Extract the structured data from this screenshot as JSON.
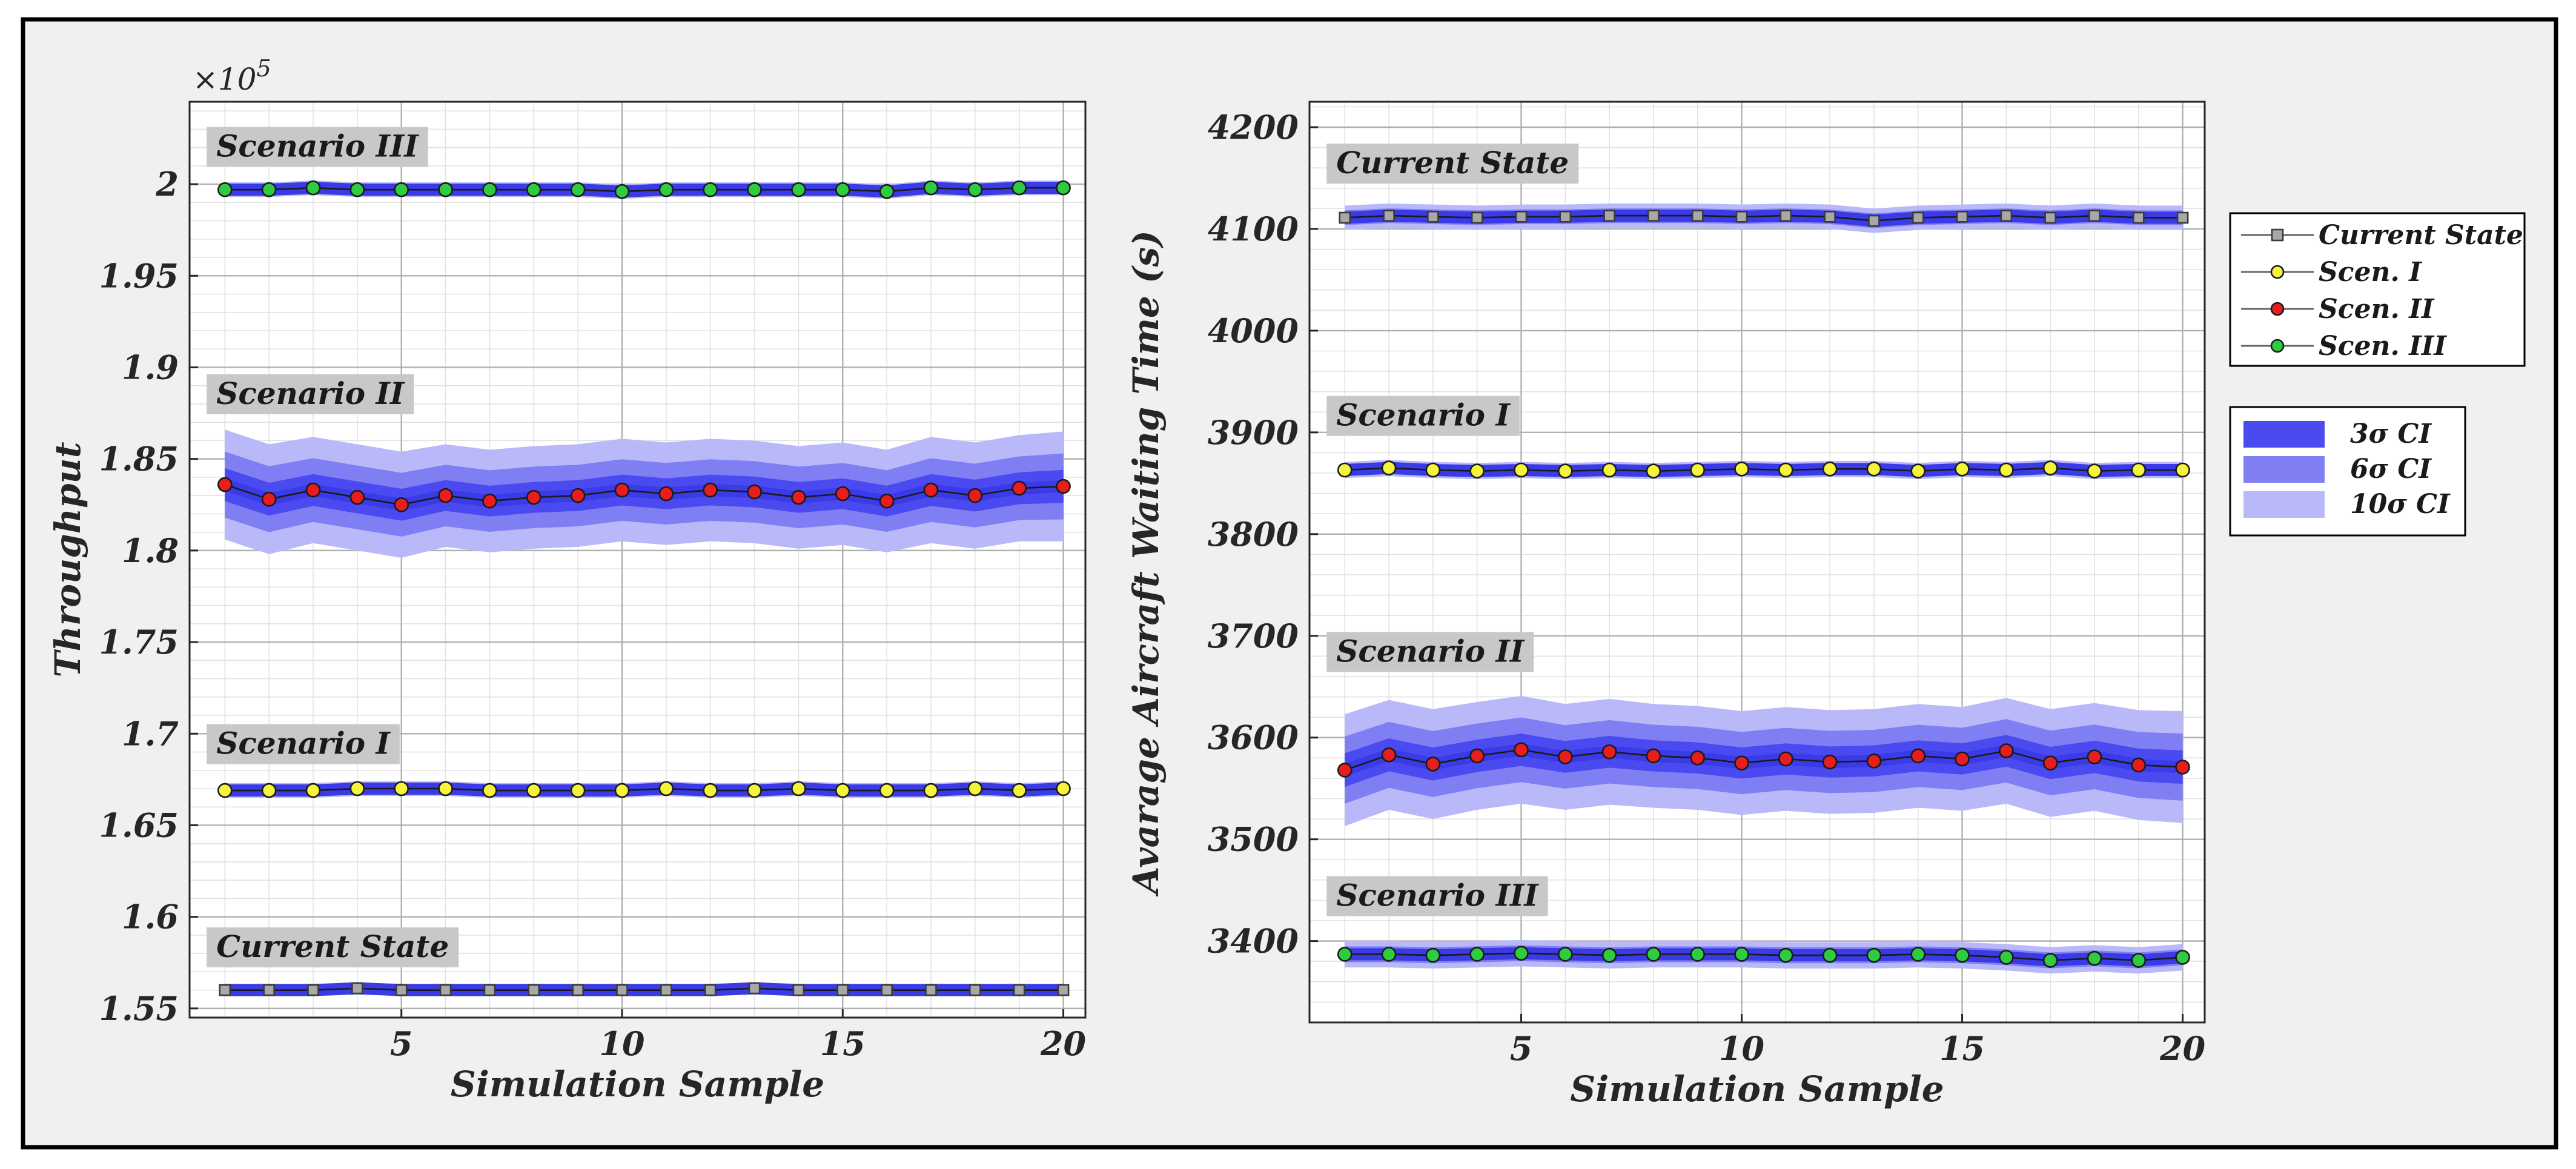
{
  "colors": {
    "band_3sigma": "#4a4af0",
    "band_6sigma": "#7f7ff3",
    "band_10sigma": "#b9b9fa",
    "current_state": "#a8a8a8",
    "scen1": "#f4f43c",
    "scen2": "#e81e1e",
    "scen3": "#2ecc40"
  },
  "chart_data": [
    {
      "type": "line",
      "xlabel": "Simulation Sample",
      "ylabel": "Throughput",
      "multiplier_label": "×10",
      "multiplier_exp": "5",
      "x": [
        1,
        2,
        3,
        4,
        5,
        6,
        7,
        8,
        9,
        10,
        11,
        12,
        13,
        14,
        15,
        16,
        17,
        18,
        19,
        20
      ],
      "xlim": [
        0.2,
        20.5
      ],
      "ylim": [
        1.545,
        2.045
      ],
      "xticks": [
        5,
        10,
        15,
        20
      ],
      "xtick_labels": [
        "5",
        "10",
        "15",
        "20"
      ],
      "yticks": [
        1.55,
        1.6,
        1.65,
        1.7,
        1.75,
        1.8,
        1.85,
        1.9,
        1.95,
        2.0
      ],
      "ytick_labels": [
        "1.55",
        "1.6",
        "1.65",
        "1.7",
        "1.75",
        "1.8",
        "1.85",
        "1.9",
        "1.95",
        "2"
      ],
      "grid": true,
      "series": [
        {
          "name": "Scenario III",
          "marker": "circle",
          "color_key": "scen3",
          "values": [
            1.997,
            1.997,
            1.998,
            1.997,
            1.997,
            1.997,
            1.997,
            1.997,
            1.997,
            1.996,
            1.997,
            1.997,
            1.997,
            1.997,
            1.997,
            1.996,
            1.998,
            1.997,
            1.998,
            1.998
          ],
          "sigma": [
            0.0004,
            0.0004,
            0.0004,
            0.0004,
            0.0004,
            0.0004,
            0.0004,
            0.0004,
            0.0004,
            0.0004,
            0.0004,
            0.0004,
            0.0004,
            0.0004,
            0.0004,
            0.0004,
            0.0004,
            0.0004,
            0.0004,
            0.0004
          ]
        },
        {
          "name": "Scenario II",
          "marker": "circle",
          "color_key": "scen2",
          "values": [
            1.836,
            1.828,
            1.833,
            1.829,
            1.825,
            1.83,
            1.827,
            1.829,
            1.83,
            1.833,
            1.831,
            1.833,
            1.832,
            1.829,
            1.831,
            1.827,
            1.833,
            1.83,
            1.834,
            1.835
          ],
          "sigma": [
            0.003,
            0.003,
            0.0029,
            0.0029,
            0.0029,
            0.0028,
            0.0028,
            0.0028,
            0.0028,
            0.0028,
            0.0028,
            0.0028,
            0.0028,
            0.0028,
            0.0028,
            0.0028,
            0.0029,
            0.0029,
            0.0029,
            0.003
          ]
        },
        {
          "name": "Scenario I",
          "marker": "circle",
          "color_key": "scen1",
          "values": [
            1.669,
            1.669,
            1.669,
            1.67,
            1.67,
            1.67,
            1.669,
            1.669,
            1.669,
            1.669,
            1.67,
            1.669,
            1.669,
            1.67,
            1.669,
            1.669,
            1.669,
            1.67,
            1.669,
            1.67
          ],
          "sigma": [
            0.0004,
            0.0004,
            0.0004,
            0.0004,
            0.0004,
            0.0004,
            0.0004,
            0.0004,
            0.0004,
            0.0004,
            0.0004,
            0.0004,
            0.0004,
            0.0004,
            0.0004,
            0.0004,
            0.0004,
            0.0004,
            0.0004,
            0.0004
          ]
        },
        {
          "name": "Current State",
          "marker": "square",
          "color_key": "current_state",
          "values": [
            1.56,
            1.56,
            1.56,
            1.561,
            1.56,
            1.56,
            1.56,
            1.56,
            1.56,
            1.56,
            1.56,
            1.56,
            1.561,
            1.56,
            1.56,
            1.56,
            1.56,
            1.56,
            1.56,
            1.56
          ],
          "sigma": [
            0.0003,
            0.0003,
            0.0003,
            0.0003,
            0.0003,
            0.0003,
            0.0003,
            0.0003,
            0.0003,
            0.0003,
            0.0003,
            0.0003,
            0.0003,
            0.0003,
            0.0003,
            0.0003,
            0.0003,
            0.0003,
            0.0003,
            0.0003
          ]
        }
      ],
      "annotations": [
        {
          "text": "Scenario III",
          "x": 1,
          "y": 2.018
        },
        {
          "text": "Scenario II",
          "x": 1,
          "y": 1.883
        },
        {
          "text": "Scenario I",
          "x": 1,
          "y": 1.692
        },
        {
          "text": "Current State",
          "x": 1,
          "y": 1.581
        }
      ]
    },
    {
      "type": "line",
      "xlabel": "Simulation Sample",
      "ylabel": "Avarage Aircraft Waiting Time (s)",
      "x": [
        1,
        2,
        3,
        4,
        5,
        6,
        7,
        8,
        9,
        10,
        11,
        12,
        13,
        14,
        15,
        16,
        17,
        18,
        19,
        20
      ],
      "xlim": [
        0.2,
        20.5
      ],
      "ylim": [
        3320,
        4225
      ],
      "xticks": [
        5,
        10,
        15,
        20
      ],
      "xtick_labels": [
        "5",
        "10",
        "15",
        "20"
      ],
      "yticks": [
        3400,
        3500,
        3600,
        3700,
        3800,
        3900,
        4000,
        4100,
        4200
      ],
      "ytick_labels": [
        "3400",
        "3500",
        "3600",
        "3700",
        "3800",
        "3900",
        "4000",
        "4100",
        "4200"
      ],
      "grid": true,
      "series": [
        {
          "name": "Current State",
          "marker": "square",
          "color_key": "current_state",
          "values": [
            4111,
            4113,
            4112,
            4111,
            4112,
            4112,
            4113,
            4113,
            4113,
            4112,
            4113,
            4112,
            4108,
            4111,
            4112,
            4113,
            4111,
            4113,
            4111,
            4111
          ],
          "sigma": [
            1.2,
            1.2,
            1.2,
            1.2,
            1.2,
            1.2,
            1.2,
            1.2,
            1.2,
            1.2,
            1.2,
            1.2,
            1.2,
            1.2,
            1.2,
            1.2,
            1.2,
            1.2,
            1.2,
            1.2
          ]
        },
        {
          "name": "Scenario I",
          "marker": "circle",
          "color_key": "scen1",
          "values": [
            3863,
            3865,
            3863,
            3862,
            3863,
            3862,
            3863,
            3862,
            3863,
            3864,
            3863,
            3864,
            3864,
            3862,
            3864,
            3863,
            3865,
            3862,
            3863,
            3863
          ],
          "sigma": [
            0.8,
            0.8,
            0.8,
            0.8,
            0.8,
            0.8,
            0.8,
            0.8,
            0.8,
            0.8,
            0.8,
            0.8,
            0.8,
            0.8,
            0.8,
            0.8,
            0.8,
            0.8,
            0.8,
            0.8
          ]
        },
        {
          "name": "Scenario II",
          "marker": "circle",
          "color_key": "scen2",
          "values": [
            3568,
            3583,
            3574,
            3582,
            3588,
            3581,
            3586,
            3582,
            3580,
            3575,
            3579,
            3576,
            3577,
            3582,
            3579,
            3587,
            3575,
            3581,
            3573,
            3571
          ],
          "sigma": [
            5.5,
            5.4,
            5.4,
            5.3,
            5.3,
            5.2,
            5.2,
            5.1,
            5.1,
            5.1,
            5.1,
            5.1,
            5.1,
            5.1,
            5.1,
            5.2,
            5.3,
            5.3,
            5.4,
            5.5
          ]
        },
        {
          "name": "Scenario III",
          "marker": "circle",
          "color_key": "scen3",
          "values": [
            3387,
            3387,
            3386,
            3387,
            3388,
            3387,
            3386,
            3387,
            3387,
            3387,
            3386,
            3386,
            3386,
            3387,
            3386,
            3384,
            3381,
            3383,
            3381,
            3384
          ],
          "sigma": [
            1.3,
            1.3,
            1.3,
            1.3,
            1.3,
            1.3,
            1.3,
            1.3,
            1.3,
            1.3,
            1.3,
            1.3,
            1.3,
            1.3,
            1.3,
            1.3,
            1.3,
            1.3,
            1.3,
            1.3
          ]
        }
      ],
      "annotations": [
        {
          "text": "Current State",
          "x": 1,
          "y": 4160
        },
        {
          "text": "Scenario I",
          "x": 1,
          "y": 3912
        },
        {
          "text": "Scenario II",
          "x": 1,
          "y": 3680
        },
        {
          "text": "Scenario III",
          "x": 1,
          "y": 3440
        }
      ]
    }
  ],
  "legend_markers": {
    "title": "series",
    "entries": [
      {
        "label": "Current State",
        "marker": "square",
        "color_key": "current_state"
      },
      {
        "label": "Scen. I",
        "marker": "circle",
        "color_key": "scen1"
      },
      {
        "label": "Scen. II",
        "marker": "circle",
        "color_key": "scen2"
      },
      {
        "label": "Scen. III",
        "marker": "circle",
        "color_key": "scen3"
      }
    ]
  },
  "legend_ci": {
    "entries": [
      {
        "label": "3σ CI",
        "color_key": "band_3sigma",
        "k": 3
      },
      {
        "label": "6σ CI",
        "color_key": "band_6sigma",
        "k": 6
      },
      {
        "label": "10σ CI",
        "color_key": "band_10sigma",
        "k": 10
      }
    ]
  }
}
